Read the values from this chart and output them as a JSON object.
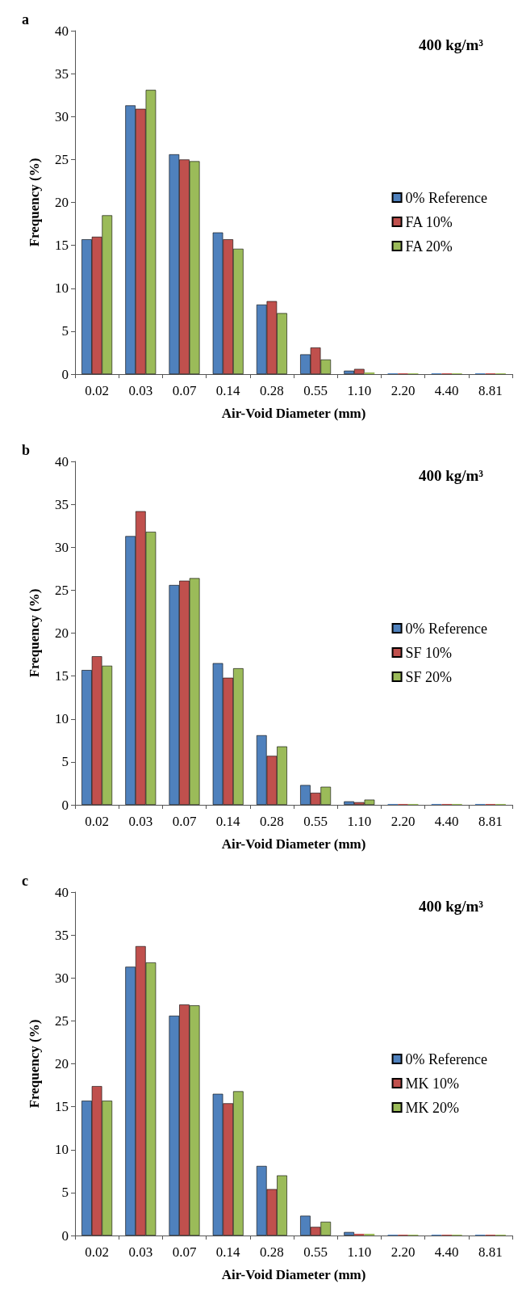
{
  "chart_data": [
    {
      "type": "bar",
      "title": "a",
      "annotations": [
        "400 kg/m³"
      ],
      "xlabel": "Air-Void Diameter (mm)",
      "ylabel": "Frequency (%)",
      "categories": [
        "0.02",
        "0.03",
        "0.07",
        "0.14",
        "0.28",
        "0.55",
        "1.10",
        "2.20",
        "4.40",
        "8.81"
      ],
      "series": [
        {
          "name": "0% Reference",
          "color": "#4f81bd",
          "values": [
            15.7,
            31.3,
            25.6,
            16.5,
            8.1,
            2.3,
            0.4,
            0.1,
            0.1,
            0.1
          ]
        },
        {
          "name": "FA 10%",
          "color": "#c0504d",
          "values": [
            16.0,
            30.9,
            25.0,
            15.7,
            8.5,
            3.1,
            0.6,
            0.1,
            0.1,
            0.1
          ]
        },
        {
          "name": "FA 20%",
          "color": "#9bbb59",
          "values": [
            18.5,
            33.1,
            24.8,
            14.6,
            7.1,
            1.7,
            0.2,
            0.1,
            0.1,
            0.1
          ]
        }
      ],
      "ylim": [
        0,
        40
      ],
      "yticks": [
        0,
        5,
        10,
        15,
        20,
        25,
        30,
        35,
        40
      ],
      "grid": false,
      "legend": "right"
    },
    {
      "type": "bar",
      "title": "b",
      "annotations": [
        "400 kg/m³"
      ],
      "xlabel": "Air-Void Diameter (mm)",
      "ylabel": "Frequency (%)",
      "categories": [
        "0.02",
        "0.03",
        "0.07",
        "0.14",
        "0.28",
        "0.55",
        "1.10",
        "2.20",
        "4.40",
        "8.81"
      ],
      "series": [
        {
          "name": "0% Reference",
          "color": "#4f81bd",
          "values": [
            15.7,
            31.3,
            25.6,
            16.5,
            8.1,
            2.3,
            0.4,
            0.1,
            0.1,
            0.1
          ]
        },
        {
          "name": "SF 10%",
          "color": "#c0504d",
          "values": [
            17.3,
            34.2,
            26.1,
            14.8,
            5.7,
            1.4,
            0.3,
            0.1,
            0.1,
            0.1
          ]
        },
        {
          "name": "SF 20%",
          "color": "#9bbb59",
          "values": [
            16.2,
            31.8,
            26.4,
            15.9,
            6.8,
            2.1,
            0.6,
            0.1,
            0.1,
            0.1
          ]
        }
      ],
      "ylim": [
        0,
        40
      ],
      "yticks": [
        0,
        5,
        10,
        15,
        20,
        25,
        30,
        35,
        40
      ],
      "grid": false,
      "legend": "right"
    },
    {
      "type": "bar",
      "title": "c",
      "annotations": [
        "400 kg/m³"
      ],
      "xlabel": "Air-Void Diameter (mm)",
      "ylabel": "Frequency (%)",
      "categories": [
        "0.02",
        "0.03",
        "0.07",
        "0.14",
        "0.28",
        "0.55",
        "1.10",
        "2.20",
        "4.40",
        "8.81"
      ],
      "series": [
        {
          "name": "0% Reference",
          "color": "#4f81bd",
          "values": [
            15.7,
            31.3,
            25.6,
            16.5,
            8.1,
            2.3,
            0.4,
            0.1,
            0.1,
            0.1
          ]
        },
        {
          "name": "MK 10%",
          "color": "#c0504d",
          "values": [
            17.4,
            33.7,
            26.9,
            15.4,
            5.4,
            1.0,
            0.2,
            0.1,
            0.1,
            0.1
          ]
        },
        {
          "name": "MK 20%",
          "color": "#9bbb59",
          "values": [
            15.7,
            31.8,
            26.8,
            16.8,
            7.0,
            1.6,
            0.2,
            0.1,
            0.1,
            0.1
          ]
        }
      ],
      "ylim": [
        0,
        40
      ],
      "yticks": [
        0,
        5,
        10,
        15,
        20,
        25,
        30,
        35,
        40
      ],
      "grid": false,
      "legend": "right"
    }
  ]
}
